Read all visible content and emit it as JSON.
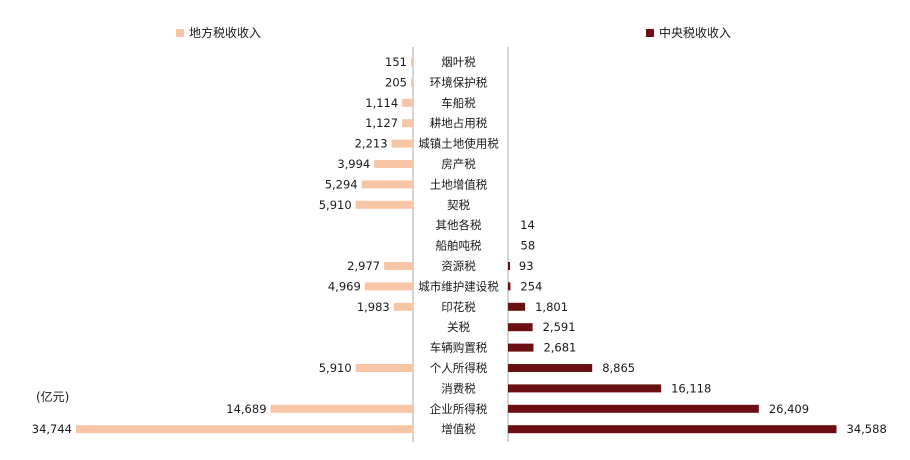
{
  "colors": {
    "local": "#F8C6A6",
    "central": "#6B0F12",
    "axis": "#aaaaaa"
  },
  "chart_data": {
    "type": "bar",
    "orientation": "horizontal-butterfly",
    "unit_label": "(亿元)",
    "categories": [
      "烟叶税",
      "环境保护税",
      "车船税",
      "耕地占用税",
      "城镇土地使用税",
      "房产税",
      "土地增值税",
      "契税",
      "其他各税",
      "船舶吨税",
      "资源税",
      "城市维护建设税",
      "印花税",
      "关税",
      "车辆购置税",
      "个人所得税",
      "消费税",
      "企业所得税",
      "增值税"
    ],
    "series": [
      {
        "name": "地方税收收入",
        "side": "left",
        "values": [
          151,
          205,
          1114,
          1127,
          2213,
          3994,
          5294,
          5910,
          null,
          null,
          2977,
          4969,
          1983,
          null,
          null,
          5910,
          null,
          14689,
          34744
        ],
        "labels": [
          "151",
          "205",
          "1,114",
          "1,127",
          "2,213",
          "3,994",
          "5,294",
          "5,910",
          "",
          "",
          "2,977",
          "4,969",
          "1,983",
          "",
          "",
          "5,910",
          "",
          "14,689",
          "34,744"
        ]
      },
      {
        "name": "中央税收收入",
        "side": "right",
        "values": [
          null,
          null,
          null,
          null,
          null,
          null,
          null,
          null,
          14,
          58,
          93,
          254,
          1801,
          2591,
          2681,
          8865,
          16118,
          26409,
          34588
        ],
        "labels": [
          "",
          "",
          "",
          "",
          "",
          "",
          "",
          "",
          "14",
          "58",
          "93",
          "254",
          "1,801",
          "2,591",
          "2,681",
          "8,865",
          "16,118",
          "26,409",
          "34,588"
        ]
      }
    ],
    "xlim": [
      0,
      34744
    ],
    "legend_placement": "top",
    "grid": false
  }
}
